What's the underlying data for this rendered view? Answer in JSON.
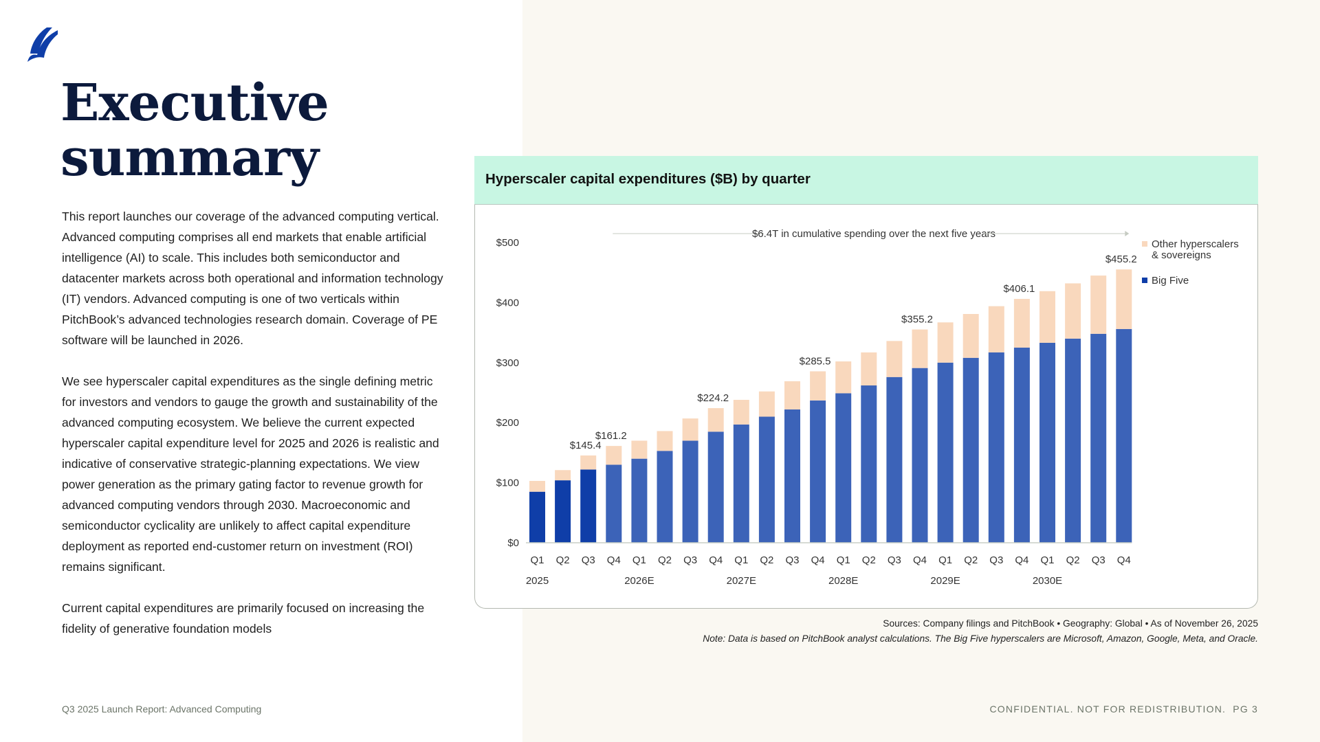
{
  "page": {
    "title_line1": "Executive",
    "title_line2": "summary",
    "logo_icon": "sail-logo-icon",
    "paragraphs": [
      "This report launches our coverage of the advanced computing vertical. Advanced computing comprises all end markets that enable artificial intelligence (AI) to scale. This includes both semiconductor and datacenter markets across both operational and information technology (IT) vendors. Advanced computing is one of two verticals within PitchBook’s advanced technologies research domain. Coverage of PE software will be launched in 2026.",
      "We see hyperscaler capital expenditures as the single defining metric for investors and vendors to gauge the growth and sustainability of the advanced computing ecosystem. We believe the current expected hyperscaler capital expenditure level for 2025 and 2026 is realistic and indicative of conservative strategic-planning expectations. We view power generation as the primary gating factor to revenue growth for advanced computing vendors through 2030. Macroeconomic and semiconductor cyclicality are unlikely to affect capital expenditure deployment as reported end-customer return on investment (ROI) remains significant.",
      "Current capital expenditures are primarily focused on increasing the fidelity of generative foundation models"
    ],
    "footer_left": "Q3 2025 Launch Report: Advanced Computing",
    "footer_right": "CONFIDENTIAL. NOT FOR REDISTRIBUTION.  PG 3",
    "sources": "Sources: Company filings and PitchBook  •  Geography: Global  •  As of November 26, 2025",
    "note": "Note: Data is based on PitchBook analyst calculations. The Big Five hyperscalers are Microsoft, Amazon, Google, Meta, and Oracle."
  },
  "colors": {
    "big_five_actual": "#0f3ea8",
    "big_five_estimate": "#3c63b8",
    "other": "#f9d8bd",
    "header_bg": "#c8f6e3",
    "title": "#0c1a3c"
  },
  "chart_data": {
    "type": "bar",
    "stacked": true,
    "title": "Hyperscaler capital expenditures ($B) by quarter",
    "xlabel": "",
    "ylabel": "",
    "ylim": [
      0,
      500
    ],
    "yticks": [
      0,
      100,
      200,
      300,
      400,
      500
    ],
    "ytick_labels": [
      "$0",
      "$100",
      "$200",
      "$300",
      "$400",
      "$500"
    ],
    "grid": false,
    "legend_position": "right",
    "categories": [
      "Q1",
      "Q2",
      "Q3",
      "Q4",
      "Q1",
      "Q2",
      "Q3",
      "Q4",
      "Q1",
      "Q2",
      "Q3",
      "Q4",
      "Q1",
      "Q2",
      "Q3",
      "Q4",
      "Q1",
      "Q2",
      "Q3",
      "Q4",
      "Q1",
      "Q2",
      "Q3",
      "Q4"
    ],
    "year_labels": [
      {
        "label": "2025",
        "index": 0
      },
      {
        "label": "2026E",
        "index": 4
      },
      {
        "label": "2027E",
        "index": 8
      },
      {
        "label": "2028E",
        "index": 12
      },
      {
        "label": "2029E",
        "index": 16
      },
      {
        "label": "2030E",
        "index": 20
      }
    ],
    "actual_count": 3,
    "series": [
      {
        "name": "Big Five",
        "values": [
          85,
          104,
          122,
          130,
          140,
          153,
          170,
          185,
          197,
          210,
          222,
          237,
          249,
          262,
          276,
          291,
          300,
          308,
          317,
          325,
          333,
          340,
          348,
          356
        ]
      },
      {
        "name": "Other hyperscalers & sovereigns",
        "values": [
          18,
          17,
          23.4,
          31.2,
          30,
          33,
          37,
          39.2,
          41,
          42,
          47,
          48.5,
          53,
          55,
          60,
          64.2,
          67,
          73,
          77,
          81.1,
          86,
          92,
          97,
          99.2
        ]
      }
    ],
    "totals": [
      103,
      121,
      145.4,
      161.2,
      170,
      186,
      207,
      224.2,
      238,
      252,
      269,
      285.5,
      302,
      317,
      336,
      355.2,
      367,
      381,
      394,
      406.1,
      419,
      432,
      445,
      455.2
    ],
    "data_labels": [
      {
        "index": 2,
        "label": "$145.4"
      },
      {
        "index": 3,
        "label": "$161.2"
      },
      {
        "index": 7,
        "label": "$224.2"
      },
      {
        "index": 11,
        "label": "$285.5"
      },
      {
        "index": 15,
        "label": "$355.2"
      },
      {
        "index": 19,
        "label": "$406.1"
      },
      {
        "index": 23,
        "label": "$455.2"
      }
    ],
    "annotation": "$6.4T in cumulative spending over the next five years",
    "legend": [
      "Other hyperscalers",
      "& sovereigns",
      "Big Five"
    ]
  }
}
